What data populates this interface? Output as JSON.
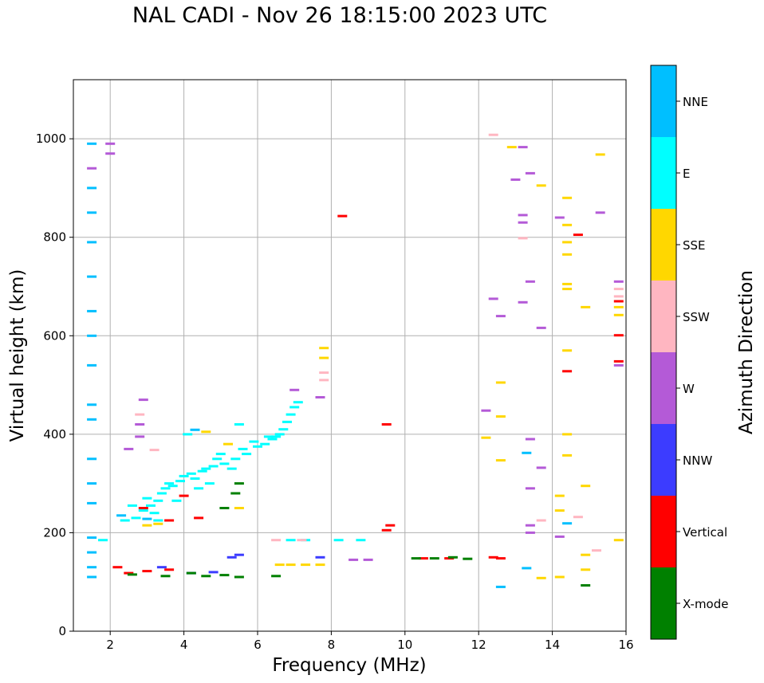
{
  "chart_data": {
    "type": "scatter",
    "title": "NAL CADI - Nov 26 18:15:00 2023 UTC",
    "xlabel": "Frequency (MHz)",
    "ylabel": "Virtual height (km)",
    "xlim": [
      1,
      16
    ],
    "ylim": [
      0,
      1120
    ],
    "xticks": [
      2,
      4,
      6,
      8,
      10,
      12,
      14,
      16
    ],
    "yticks": [
      0,
      200,
      400,
      600,
      800,
      1000
    ],
    "grid": true,
    "colorbar": {
      "label": "Azimuth Direction",
      "categories": [
        {
          "name": "X-mode",
          "color": "#008000"
        },
        {
          "name": "Vertical",
          "color": "#ff0000"
        },
        {
          "name": "NNW",
          "color": "#3c3cff"
        },
        {
          "name": "W",
          "color": "#b45ad7"
        },
        {
          "name": "SSW",
          "color": "#ffb6c1"
        },
        {
          "name": "SSE",
          "color": "#ffd700"
        },
        {
          "name": "E",
          "color": "#00ffff"
        },
        {
          "name": "NNE",
          "color": "#00bfff"
        }
      ]
    },
    "series": [
      {
        "name": "E",
        "color": "#00ffff",
        "points": [
          [
            2.4,
            225
          ],
          [
            2.7,
            230
          ],
          [
            2.9,
            245
          ],
          [
            3.1,
            255
          ],
          [
            3.3,
            265
          ],
          [
            3.4,
            280
          ],
          [
            3.5,
            290
          ],
          [
            3.7,
            295
          ],
          [
            3.9,
            305
          ],
          [
            4.0,
            315
          ],
          [
            4.2,
            320
          ],
          [
            4.3,
            310
          ],
          [
            4.5,
            325
          ],
          [
            4.6,
            330
          ],
          [
            4.8,
            335
          ],
          [
            4.9,
            350
          ],
          [
            5.1,
            340
          ],
          [
            5.3,
            330
          ],
          [
            5.4,
            350
          ],
          [
            5.6,
            370
          ],
          [
            5.7,
            360
          ],
          [
            5.9,
            385
          ],
          [
            6.0,
            375
          ],
          [
            6.2,
            380
          ],
          [
            6.3,
            395
          ],
          [
            6.4,
            390
          ],
          [
            6.6,
            400
          ],
          [
            6.7,
            410
          ],
          [
            6.8,
            425
          ],
          [
            6.9,
            440
          ],
          [
            7.0,
            455
          ],
          [
            7.1,
            465
          ],
          [
            3.0,
            270
          ],
          [
            3.2,
            240
          ],
          [
            3.6,
            300
          ],
          [
            4.1,
            400
          ],
          [
            4.4,
            290
          ],
          [
            4.7,
            300
          ],
          [
            5.0,
            360
          ],
          [
            5.5,
            420
          ],
          [
            6.5,
            395
          ],
          [
            2.6,
            255
          ],
          [
            3.3,
            225
          ],
          [
            3.8,
            265
          ],
          [
            1.8,
            185
          ],
          [
            6.9,
            185
          ],
          [
            7.3,
            185
          ],
          [
            8.2,
            185
          ],
          [
            8.8,
            185
          ]
        ]
      },
      {
        "name": "NNE",
        "color": "#00bfff",
        "points": [
          [
            1.5,
            990
          ],
          [
            1.5,
            900
          ],
          [
            1.5,
            850
          ],
          [
            1.5,
            790
          ],
          [
            1.5,
            720
          ],
          [
            1.5,
            650
          ],
          [
            1.5,
            600
          ],
          [
            1.5,
            540
          ],
          [
            1.5,
            460
          ],
          [
            1.5,
            430
          ],
          [
            1.5,
            350
          ],
          [
            1.5,
            300
          ],
          [
            1.5,
            260
          ],
          [
            1.5,
            190
          ],
          [
            1.5,
            160
          ],
          [
            1.5,
            130
          ],
          [
            1.5,
            110
          ],
          [
            2.3,
            235
          ],
          [
            3.0,
            228
          ],
          [
            4.3,
            409
          ],
          [
            13.3,
            362
          ],
          [
            13.3,
            128
          ],
          [
            14.4,
            219
          ],
          [
            12.6,
            90
          ]
        ]
      },
      {
        "name": "SSE",
        "color": "#ffd700",
        "points": [
          [
            3.0,
            215
          ],
          [
            3.3,
            218
          ],
          [
            4.6,
            405
          ],
          [
            5.2,
            380
          ],
          [
            5.5,
            250
          ],
          [
            6.6,
            135
          ],
          [
            6.9,
            135
          ],
          [
            7.3,
            135
          ],
          [
            7.7,
            135
          ],
          [
            7.8,
            575
          ],
          [
            7.8,
            555
          ],
          [
            12.6,
            505
          ],
          [
            12.6,
            436
          ],
          [
            12.6,
            347
          ],
          [
            12.9,
            983
          ],
          [
            13.7,
            905
          ],
          [
            14.2,
            275
          ],
          [
            14.2,
            245
          ],
          [
            14.4,
            880
          ],
          [
            14.4,
            825
          ],
          [
            14.4,
            790
          ],
          [
            14.4,
            765
          ],
          [
            14.4,
            705
          ],
          [
            14.4,
            695
          ],
          [
            14.4,
            570
          ],
          [
            14.4,
            400
          ],
          [
            14.4,
            357
          ],
          [
            14.9,
            658
          ],
          [
            14.9,
            295
          ],
          [
            14.9,
            155
          ],
          [
            14.9,
            125
          ],
          [
            15.3,
            968
          ],
          [
            15.8,
            658
          ],
          [
            15.8,
            642
          ],
          [
            15.8,
            185
          ],
          [
            14.2,
            110
          ],
          [
            13.7,
            108
          ],
          [
            12.2,
            393
          ]
        ]
      },
      {
        "name": "SSW",
        "color": "#ffb6c1",
        "points": [
          [
            3.2,
            368
          ],
          [
            6.5,
            185
          ],
          [
            7.2,
            185
          ],
          [
            7.8,
            525
          ],
          [
            7.8,
            510
          ],
          [
            12.4,
            1008
          ],
          [
            13.2,
            798
          ],
          [
            13.7,
            225
          ],
          [
            14.7,
            232
          ],
          [
            15.2,
            164
          ],
          [
            15.8,
            695
          ],
          [
            15.8,
            680
          ],
          [
            2.8,
            440
          ]
        ]
      },
      {
        "name": "W",
        "color": "#b45ad7",
        "points": [
          [
            2.5,
            370
          ],
          [
            2.8,
            395
          ],
          [
            2.8,
            420
          ],
          [
            2.9,
            470
          ],
          [
            7.0,
            490
          ],
          [
            7.7,
            475
          ],
          [
            9.0,
            145
          ],
          [
            8.6,
            145
          ],
          [
            12.2,
            448
          ],
          [
            12.4,
            675
          ],
          [
            12.6,
            640
          ],
          [
            13.0,
            917
          ],
          [
            13.2,
            983
          ],
          [
            13.2,
            845
          ],
          [
            13.2,
            830
          ],
          [
            13.2,
            668
          ],
          [
            13.4,
            930
          ],
          [
            13.4,
            710
          ],
          [
            13.4,
            390
          ],
          [
            13.4,
            290
          ],
          [
            13.4,
            215
          ],
          [
            13.4,
            200
          ],
          [
            13.7,
            616
          ],
          [
            13.7,
            332
          ],
          [
            14.2,
            840
          ],
          [
            14.2,
            192
          ],
          [
            15.3,
            850
          ],
          [
            15.8,
            710
          ],
          [
            15.8,
            540
          ],
          [
            1.5,
            940
          ],
          [
            2.0,
            990
          ],
          [
            2.0,
            970
          ]
        ]
      },
      {
        "name": "NNW",
        "color": "#3c3cff",
        "points": [
          [
            5.3,
            150
          ],
          [
            5.5,
            155
          ],
          [
            7.7,
            150
          ],
          [
            3.4,
            130
          ],
          [
            4.2,
            118
          ],
          [
            4.8,
            120
          ]
        ]
      },
      {
        "name": "Vertical",
        "color": "#ff0000",
        "points": [
          [
            8.3,
            843
          ],
          [
            9.5,
            420
          ],
          [
            9.5,
            205
          ],
          [
            9.6,
            215
          ],
          [
            12.4,
            150
          ],
          [
            12.6,
            148
          ],
          [
            14.4,
            528
          ],
          [
            14.7,
            805
          ],
          [
            15.8,
            670
          ],
          [
            15.8,
            601
          ],
          [
            15.8,
            548
          ],
          [
            2.2,
            130
          ],
          [
            2.5,
            118
          ],
          [
            3.0,
            122
          ],
          [
            3.6,
            125
          ],
          [
            2.9,
            250
          ],
          [
            3.6,
            225
          ],
          [
            4.0,
            275
          ],
          [
            4.4,
            230
          ],
          [
            10.5,
            148
          ],
          [
            11.2,
            148
          ]
        ]
      },
      {
        "name": "X-mode",
        "color": "#008000",
        "points": [
          [
            4.2,
            118
          ],
          [
            4.6,
            112
          ],
          [
            5.1,
            114
          ],
          [
            5.5,
            110
          ],
          [
            5.1,
            250
          ],
          [
            5.4,
            280
          ],
          [
            5.5,
            300
          ],
          [
            6.5,
            112
          ],
          [
            10.3,
            148
          ],
          [
            10.8,
            148
          ],
          [
            11.3,
            150
          ],
          [
            11.7,
            147
          ],
          [
            14.9,
            93
          ],
          [
            2.6,
            115
          ],
          [
            3.5,
            112
          ]
        ]
      }
    ]
  }
}
